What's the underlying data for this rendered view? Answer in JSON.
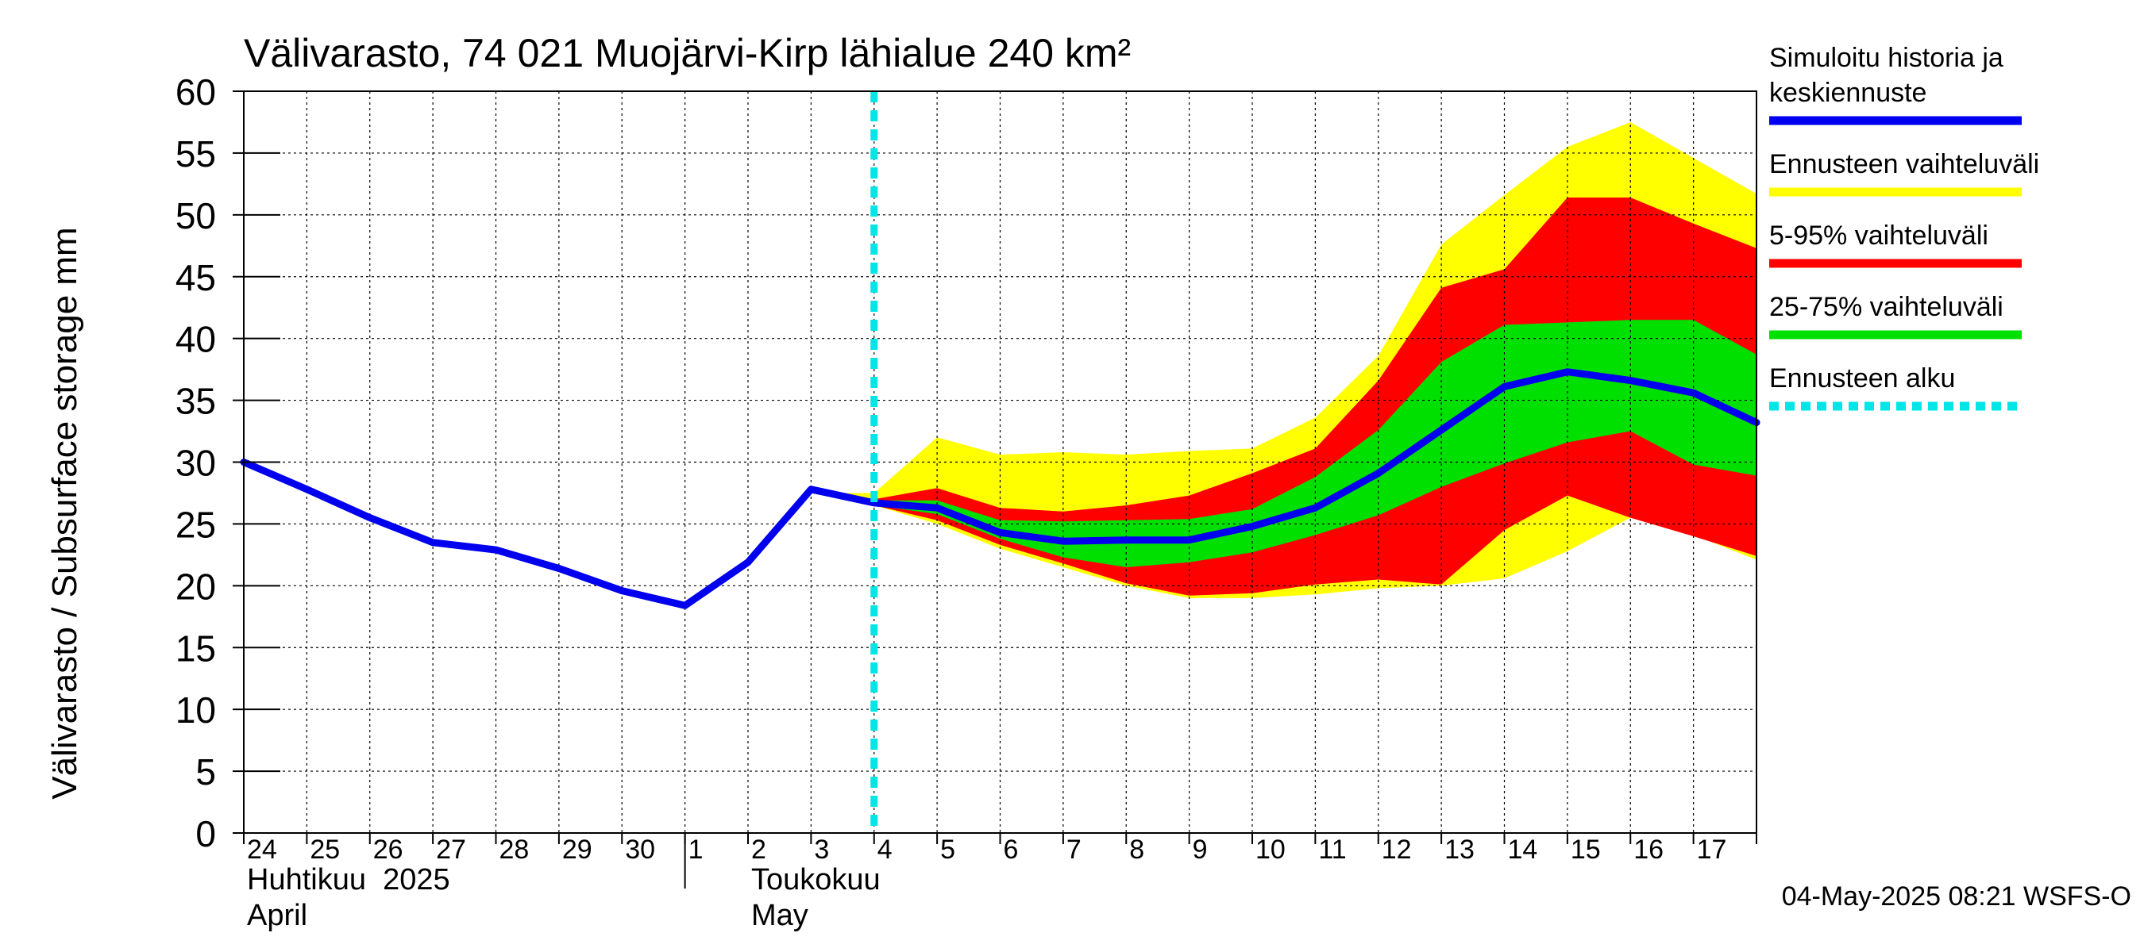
{
  "chart_data": {
    "type": "area",
    "title": "Välivarasto, 74 021 Muojärvi-Kirp lähialue 240 km²",
    "ylabel": "Välivarasto / Subsurface storage  mm",
    "ylim": [
      0,
      60
    ],
    "yticks": [
      "0",
      "5",
      "10",
      "15",
      "20",
      "25",
      "30",
      "35",
      "40",
      "45",
      "50",
      "55",
      "60"
    ],
    "xlim": [
      0,
      24
    ],
    "x_day_labels": [
      "24",
      "25",
      "26",
      "27",
      "28",
      "29",
      "30",
      "1",
      "2",
      "3",
      "4",
      "5",
      "6",
      "7",
      "8",
      "9",
      "10",
      "11",
      "12",
      "13",
      "14",
      "15",
      "16",
      "17"
    ],
    "month_labels": [
      {
        "line1": "Huhtikuu  2025",
        "line2": "April"
      },
      {
        "line1": "Toukokuu",
        "line2": "May"
      }
    ],
    "grid": true,
    "forecast_start_x": 10.0,
    "timestamp": "04-May-2025 08:21 WSFS-O",
    "legend": [
      {
        "label": "Simuloitu historia ja keskiennuste",
        "color": "#0000ee",
        "style": "solid"
      },
      {
        "label": "Ennusteen vaihteluväli",
        "color": "#ffff00",
        "style": "solid"
      },
      {
        "label": "5-95% vaihteluväli",
        "color": "#ff0000",
        "style": "solid"
      },
      {
        "label": "25-75% vaihteluväli",
        "color": "#00e000",
        "style": "solid"
      },
      {
        "label": "Ennusteen alku",
        "color": "#00e5e5",
        "style": "dashed"
      }
    ],
    "bands": {
      "x": [
        9.0,
        10.0,
        11.0,
        12.0,
        13.0,
        14.0,
        15.0,
        16.0,
        17.0,
        18.0,
        19.0,
        20.0,
        21.0,
        22.0,
        23.0,
        24.0
      ],
      "envelope": {
        "name": "Ennusteen vaihteluväli",
        "color": "#ffff00",
        "upper": [
          27.5,
          27.5,
          32.0,
          30.6,
          30.8,
          30.6,
          30.9,
          31.1,
          33.6,
          38.6,
          47.6,
          51.6,
          55.5,
          57.5,
          54.6,
          51.7
        ],
        "lower": [
          27.5,
          26.5,
          25.0,
          23.0,
          21.5,
          20.0,
          19.0,
          19.0,
          19.3,
          19.8,
          20.0,
          20.6,
          22.8,
          25.5,
          24.1,
          22.1
        ]
      },
      "p5_95": {
        "name": "5-95% vaihteluväli",
        "color": "#ff0000",
        "upper": [
          27.5,
          27.0,
          27.9,
          26.3,
          26.0,
          26.5,
          27.3,
          29.1,
          31.1,
          36.6,
          44.1,
          45.6,
          51.4,
          51.4,
          49.3,
          47.3
        ],
        "lower": [
          27.5,
          26.5,
          25.3,
          23.3,
          21.8,
          20.2,
          19.2,
          19.4,
          20.1,
          20.5,
          20.1,
          24.5,
          27.3,
          25.5,
          24.0,
          22.4
        ]
      },
      "p25_75": {
        "name": "25-75% vaihteluväli",
        "color": "#00e000",
        "upper": [
          27.5,
          26.9,
          26.9,
          25.3,
          25.2,
          25.3,
          25.4,
          26.2,
          28.8,
          32.6,
          38.1,
          41.1,
          41.3,
          41.5,
          41.5,
          38.7
        ],
        "lower": [
          27.5,
          26.5,
          25.8,
          23.8,
          22.3,
          21.5,
          21.9,
          22.7,
          24.1,
          25.7,
          28.0,
          29.9,
          31.6,
          32.5,
          29.8,
          28.9
        ]
      }
    },
    "series": [
      {
        "name": "Simuloitu historia ja keskiennuste",
        "color": "#0000ee",
        "x": [
          0,
          1,
          2,
          3,
          4,
          5,
          6,
          7,
          8,
          9,
          10,
          11,
          12,
          13,
          14,
          15,
          16,
          17,
          18,
          19,
          20,
          21,
          22,
          23,
          24
        ],
        "values": [
          30.0,
          27.8,
          25.5,
          23.5,
          22.9,
          21.4,
          19.6,
          18.4,
          21.9,
          27.8,
          26.7,
          26.3,
          24.3,
          23.6,
          23.7,
          23.7,
          24.8,
          26.3,
          29.1,
          32.6,
          36.1,
          37.3,
          36.6,
          35.6,
          33.2
        ]
      }
    ]
  }
}
